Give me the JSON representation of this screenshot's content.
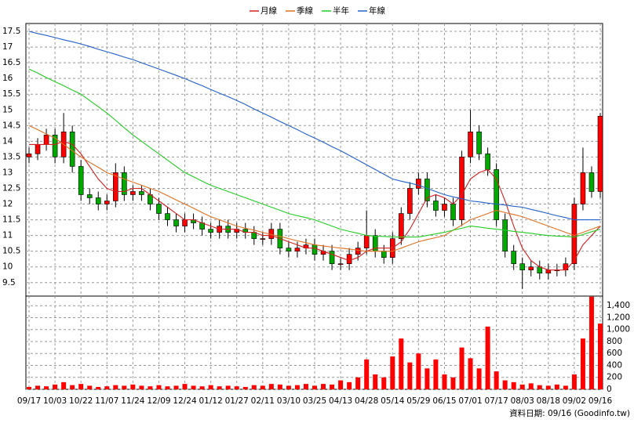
{
  "chart_data": {
    "type": "candlestick",
    "grid": true,
    "legend": "top",
    "footer": "資料日期: 09/16 (Goodinfo.tw)",
    "up_color": "#ff0000",
    "down_color": "#00a800",
    "categories": [
      "09/17",
      null,
      null,
      "10/03",
      null,
      null,
      "10/22",
      null,
      null,
      "11/07",
      null,
      null,
      "11/24",
      null,
      null,
      "12/09",
      null,
      null,
      "12/24",
      null,
      null,
      "01/12",
      null,
      null,
      "01/27",
      null,
      null,
      "02/11",
      null,
      null,
      "03/10",
      null,
      null,
      "03/25",
      null,
      null,
      "04/13",
      null,
      null,
      "04/28",
      null,
      null,
      "05/14",
      null,
      null,
      "05/29",
      null,
      null,
      "06/15",
      null,
      null,
      "07/01",
      null,
      null,
      "07/17",
      null,
      null,
      "08/03",
      null,
      null,
      "08/18",
      null,
      null,
      "09/02",
      null,
      null,
      "09/16"
    ],
    "open": [
      13.5,
      13.6,
      13.9,
      14.2,
      13.5,
      14.3,
      13.2,
      12.3,
      12.2,
      12.0,
      12.1,
      13.0,
      12.3,
      12.4,
      12.3,
      12.0,
      11.7,
      11.5,
      11.3,
      11.5,
      11.4,
      11.2,
      11.1,
      11.3,
      11.1,
      11.2,
      11.1,
      10.9,
      10.9,
      11.2,
      10.6,
      10.5,
      10.6,
      10.7,
      10.4,
      10.5,
      10.1,
      10.1,
      10.4,
      10.6,
      11.0,
      10.5,
      10.3,
      10.9,
      11.7,
      12.5,
      12.8,
      12.1,
      11.8,
      12.0,
      11.5,
      13.5,
      14.3,
      13.6,
      13.1,
      11.5,
      10.5,
      10.1,
      9.9,
      10.0,
      9.8,
      9.9,
      9.9,
      10.1,
      12.0,
      13.0,
      12.4
    ],
    "high": [
      13.8,
      14.1,
      14.4,
      14.4,
      14.9,
      14.5,
      13.4,
      12.5,
      12.4,
      12.3,
      13.3,
      13.2,
      12.6,
      12.6,
      12.5,
      12.2,
      11.9,
      11.7,
      11.7,
      11.7,
      11.6,
      11.4,
      11.5,
      11.5,
      11.4,
      11.4,
      11.3,
      11.1,
      11.4,
      11.4,
      10.8,
      10.8,
      10.9,
      10.9,
      10.7,
      10.7,
      10.3,
      10.6,
      10.8,
      11.8,
      11.2,
      10.7,
      11.1,
      11.9,
      12.7,
      13.0,
      13.0,
      12.3,
      12.2,
      12.2,
      13.7,
      15.0,
      14.5,
      13.8,
      13.3,
      11.7,
      10.7,
      10.3,
      10.2,
      10.2,
      10.1,
      10.1,
      10.3,
      12.2,
      13.8,
      13.2,
      14.9
    ],
    "low": [
      13.3,
      13.4,
      13.7,
      13.3,
      13.3,
      13.0,
      12.1,
      12.0,
      11.8,
      11.8,
      11.9,
      12.1,
      12.1,
      12.1,
      11.8,
      11.5,
      11.3,
      11.1,
      11.1,
      11.2,
      11.0,
      10.9,
      10.9,
      10.9,
      10.9,
      10.9,
      10.7,
      10.7,
      10.7,
      10.4,
      10.3,
      10.3,
      10.4,
      10.2,
      10.2,
      9.9,
      9.9,
      9.9,
      10.2,
      10.4,
      10.3,
      10.1,
      10.1,
      10.7,
      11.5,
      12.3,
      11.9,
      11.6,
      11.6,
      11.3,
      11.3,
      13.3,
      13.4,
      12.9,
      11.3,
      10.3,
      9.9,
      9.3,
      9.7,
      9.6,
      9.6,
      9.7,
      9.7,
      9.9,
      11.8,
      12.2,
      12.2
    ],
    "close": [
      13.6,
      13.9,
      14.2,
      13.5,
      14.3,
      13.2,
      12.3,
      12.2,
      12.0,
      12.1,
      13.0,
      12.3,
      12.4,
      12.3,
      12.0,
      11.7,
      11.5,
      11.3,
      11.5,
      11.4,
      11.2,
      11.1,
      11.3,
      11.1,
      11.2,
      11.1,
      10.9,
      10.9,
      11.2,
      10.6,
      10.5,
      10.6,
      10.7,
      10.4,
      10.5,
      10.1,
      10.1,
      10.4,
      10.6,
      11.0,
      10.5,
      10.3,
      10.9,
      11.7,
      12.5,
      12.8,
      12.1,
      11.8,
      12.0,
      11.5,
      13.5,
      14.3,
      13.6,
      13.1,
      11.5,
      10.5,
      10.1,
      9.9,
      10.0,
      9.8,
      9.9,
      9.9,
      10.1,
      12.0,
      13.0,
      12.4,
      14.8
    ],
    "ylim": [
      9.07,
      17.75
    ],
    "yticks": [
      9.5,
      10,
      10.5,
      11,
      11.5,
      12,
      12.5,
      13,
      13.5,
      14,
      14.5,
      15,
      15.5,
      16,
      16.5,
      17,
      17.5
    ],
    "volume": {
      "color": "#ff0000",
      "values": [
        40,
        60,
        50,
        80,
        120,
        70,
        90,
        60,
        40,
        50,
        70,
        60,
        80,
        60,
        50,
        70,
        50,
        60,
        90,
        60,
        50,
        70,
        50,
        60,
        50,
        40,
        70,
        60,
        90,
        80,
        60,
        70,
        90,
        60,
        90,
        80,
        150,
        120,
        200,
        500,
        250,
        200,
        550,
        850,
        450,
        600,
        350,
        500,
        250,
        200,
        700,
        520,
        350,
        1050,
        300,
        150,
        120,
        80,
        100,
        70,
        60,
        80,
        60,
        250,
        850,
        1550,
        1100
      ]
    },
    "y2lim": [
      0,
      1560
    ],
    "y2ticks": [
      0,
      200,
      400,
      600,
      800,
      {
        "value": 1000,
        "label": "1,000"
      },
      {
        "value": 1200,
        "label": "1,200"
      },
      {
        "value": 1400,
        "label": "1,400"
      }
    ],
    "series": [
      {
        "name": "月線",
        "color": "#d42020",
        "values": [
          13.9,
          13.9,
          13.9,
          13.9,
          14.0,
          13.9,
          13.6,
          13.2,
          12.8,
          12.5,
          12.4,
          12.4,
          12.5,
          12.5,
          12.3,
          12.1,
          11.9,
          11.7,
          11.5,
          11.5,
          11.4,
          11.3,
          11.2,
          11.2,
          11.2,
          11.1,
          11.1,
          11.0,
          11.0,
          10.9,
          10.8,
          10.7,
          10.6,
          10.6,
          10.5,
          10.4,
          10.3,
          10.2,
          10.3,
          10.5,
          10.6,
          10.6,
          10.6,
          10.8,
          11.2,
          11.7,
          12.2,
          12.3,
          12.2,
          12.0,
          12.3,
          12.8,
          13.0,
          13.1,
          12.8,
          12.1,
          11.3,
          10.6,
          10.2,
          10.0,
          9.9,
          9.9,
          9.9,
          10.2,
          10.7,
          11.0,
          11.3
        ]
      },
      {
        "name": "季線",
        "color": "#e07020",
        "values": [
          14.5,
          14.37,
          14.23,
          14.1,
          13.9,
          13.7,
          13.5,
          13.33,
          13.17,
          13.0,
          12.9,
          12.8,
          12.7,
          12.6,
          12.5,
          12.4,
          12.27,
          12.13,
          12.0,
          11.87,
          11.73,
          11.6,
          11.5,
          11.4,
          11.3,
          11.23,
          11.17,
          11.1,
          11.03,
          10.97,
          10.9,
          10.83,
          10.77,
          10.7,
          10.67,
          10.63,
          10.6,
          10.57,
          10.53,
          10.5,
          10.5,
          10.5,
          10.5,
          10.6,
          10.7,
          10.8,
          10.87,
          10.93,
          11.0,
          11.17,
          11.33,
          11.5,
          11.6,
          11.7,
          11.8,
          11.73,
          11.67,
          11.6,
          11.5,
          11.4,
          11.3,
          11.2,
          11.1,
          11.0,
          11.1,
          11.2,
          11.3
        ]
      },
      {
        "name": "半年",
        "color": "#22cc22",
        "values": [
          16.3,
          16.17,
          16.03,
          15.9,
          15.77,
          15.63,
          15.5,
          15.3,
          15.1,
          14.9,
          14.67,
          14.43,
          14.2,
          14.0,
          13.8,
          13.6,
          13.4,
          13.2,
          13.0,
          12.87,
          12.73,
          12.6,
          12.5,
          12.4,
          12.3,
          12.2,
          12.1,
          12.0,
          11.9,
          11.8,
          11.7,
          11.63,
          11.57,
          11.5,
          11.4,
          11.3,
          11.2,
          11.13,
          11.07,
          11.0,
          10.98,
          10.97,
          10.95,
          10.95,
          10.95,
          10.95,
          11.0,
          11.05,
          11.1,
          11.17,
          11.23,
          11.3,
          11.27,
          11.23,
          11.2,
          11.17,
          11.13,
          11.1,
          11.07,
          11.03,
          11.0,
          10.98,
          10.97,
          10.95,
          11.03,
          11.12,
          11.2
        ]
      },
      {
        "name": "年線",
        "color": "#2060c8",
        "values": [
          17.5,
          17.43,
          17.37,
          17.3,
          17.23,
          17.17,
          17.1,
          17.02,
          16.93,
          16.85,
          16.77,
          16.68,
          16.6,
          16.5,
          16.4,
          16.3,
          16.2,
          16.1,
          16.0,
          15.88,
          15.77,
          15.65,
          15.53,
          15.42,
          15.3,
          15.17,
          15.03,
          14.9,
          14.77,
          14.63,
          14.5,
          14.37,
          14.23,
          14.1,
          13.97,
          13.83,
          13.7,
          13.55,
          13.4,
          13.25,
          13.1,
          12.95,
          12.8,
          12.73,
          12.67,
          12.6,
          12.5,
          12.4,
          12.3,
          12.23,
          12.17,
          12.1,
          12.07,
          12.03,
          12.0,
          11.97,
          11.93,
          11.9,
          11.83,
          11.77,
          11.7,
          11.63,
          11.57,
          11.5,
          11.5,
          11.5,
          11.5
        ]
      }
    ]
  }
}
